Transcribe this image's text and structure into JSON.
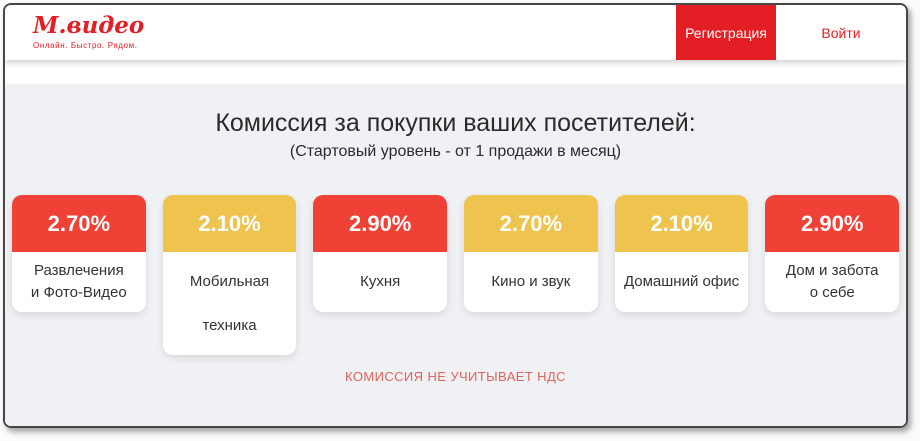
{
  "header": {
    "logo": {
      "text": "М.видео",
      "tagline": "Онлайн. Быстро. Рядом."
    },
    "register_label": "Регистрация",
    "login_label": "Войти"
  },
  "main": {
    "title": "Комиссия за покупки ваших посетителей:",
    "subtitle": "(Стартовый уровень - от 1 продажи в месяц)",
    "cards": [
      {
        "rate": "2.70%",
        "color": "red",
        "lines": [
          "Развлечения",
          "и Фото-Видео"
        ]
      },
      {
        "rate": "2.10%",
        "color": "yellow",
        "lines": [
          "Мобильная",
          "техника"
        ],
        "tall": true
      },
      {
        "rate": "2.90%",
        "color": "red",
        "lines": [
          "Кухня"
        ]
      },
      {
        "rate": "2.70%",
        "color": "yellow",
        "lines": [
          "Кино и звук"
        ]
      },
      {
        "rate": "2.10%",
        "color": "yellow",
        "lines": [
          "Домашний офис"
        ]
      },
      {
        "rate": "2.90%",
        "color": "red",
        "lines": [
          "Дом и забота",
          "о себе"
        ]
      }
    ],
    "footnote": "КОМИССИЯ НЕ УЧИТЫВАЕТ НДС"
  },
  "colors": {
    "brand_red": "#e31e24",
    "badge_red": "#ef4136",
    "badge_yellow": "#eec44e",
    "note_red": "#e0635b"
  }
}
